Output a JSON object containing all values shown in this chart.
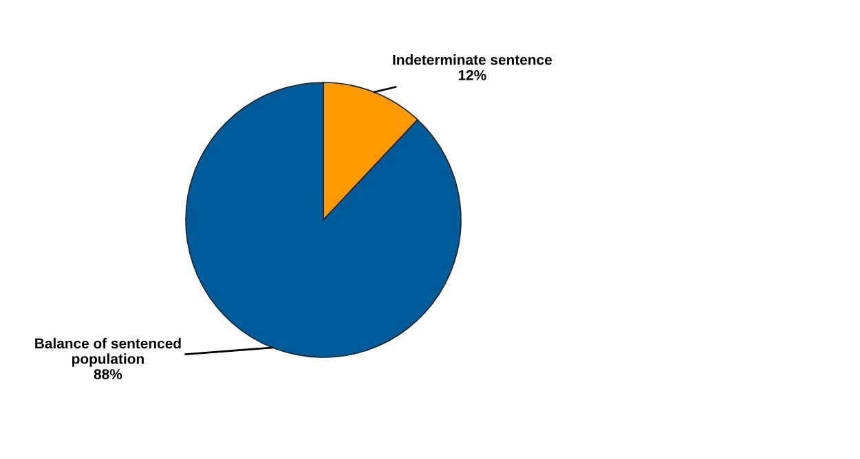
{
  "chart_data": {
    "type": "pie",
    "categories": [
      "Indeterminate sentence",
      "Balance of sentenced population"
    ],
    "values": [
      12,
      88
    ],
    "colors": [
      "#ff9900",
      "#005b9a"
    ],
    "value_labels": [
      "12%",
      "88%"
    ]
  }
}
